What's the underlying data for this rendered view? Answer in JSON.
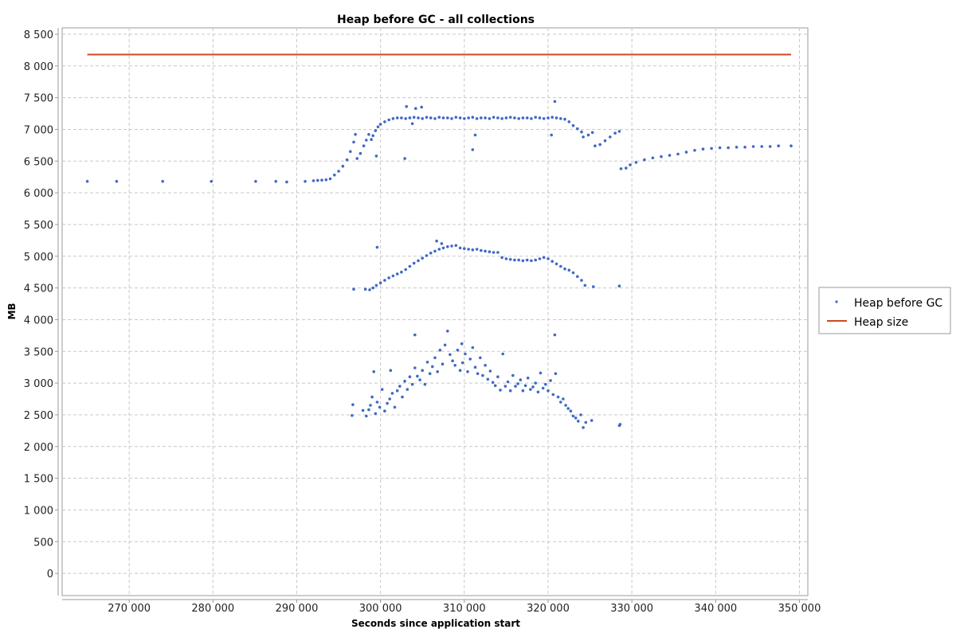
{
  "chart_data": {
    "type": "scatter",
    "title": "Heap before GC - all collections",
    "xlabel": "Seconds since application start",
    "ylabel": "MB",
    "xlim": [
      262000,
      351000
    ],
    "ylim": [
      -350,
      8600
    ],
    "x_ticks": [
      270000,
      280000,
      290000,
      300000,
      310000,
      320000,
      330000,
      340000,
      350000
    ],
    "x_tick_labels": [
      "270 000",
      "280 000",
      "290 000",
      "300 000",
      "310 000",
      "320 000",
      "330 000",
      "340 000",
      "350 000"
    ],
    "y_ticks": [
      0,
      500,
      1000,
      1500,
      2000,
      2500,
      3000,
      3500,
      4000,
      4500,
      5000,
      5500,
      6000,
      6500,
      7000,
      7500,
      8000,
      8500
    ],
    "y_tick_labels": [
      "0",
      "500",
      "1 000",
      "1 500",
      "2 000",
      "2 500",
      "3 000",
      "3 500",
      "4 000",
      "4 500",
      "5 000",
      "5 500",
      "6 000",
      "6 500",
      "7 000",
      "7 500",
      "8 000",
      "8 500"
    ],
    "grid": true,
    "legend_position": "right",
    "series": [
      {
        "name": "Heap before GC",
        "kind": "scatter",
        "color": "#4169c4",
        "points": [
          [
            265000,
            6180
          ],
          [
            268500,
            6180
          ],
          [
            274000,
            6180
          ],
          [
            279800,
            6180
          ],
          [
            285100,
            6180
          ],
          [
            287500,
            6180
          ],
          [
            288800,
            6170
          ],
          [
            291000,
            6180
          ],
          [
            292000,
            6190
          ],
          [
            292500,
            6195
          ],
          [
            293000,
            6200
          ],
          [
            293500,
            6205
          ],
          [
            294000,
            6220
          ],
          [
            294500,
            6280
          ],
          [
            295000,
            6340
          ],
          [
            295500,
            6420
          ],
          [
            296000,
            6520
          ],
          [
            296400,
            6650
          ],
          [
            296800,
            6800
          ],
          [
            297000,
            6920
          ],
          [
            297200,
            6540
          ],
          [
            297600,
            6620
          ],
          [
            298000,
            6740
          ],
          [
            298300,
            6830
          ],
          [
            298600,
            6920
          ],
          [
            298900,
            6840
          ],
          [
            299100,
            6900
          ],
          [
            299400,
            6980
          ],
          [
            299700,
            7040
          ],
          [
            300000,
            7080
          ],
          [
            300500,
            7120
          ],
          [
            301000,
            7150
          ],
          [
            301500,
            7170
          ],
          [
            302000,
            7180
          ],
          [
            302500,
            7180
          ],
          [
            303000,
            7170
          ],
          [
            303500,
            7180
          ],
          [
            304000,
            7190
          ],
          [
            304500,
            7180
          ],
          [
            305000,
            7170
          ],
          [
            305500,
            7190
          ],
          [
            306000,
            7180
          ],
          [
            306500,
            7170
          ],
          [
            307000,
            7190
          ],
          [
            307500,
            7180
          ],
          [
            308000,
            7180
          ],
          [
            308500,
            7170
          ],
          [
            309000,
            7190
          ],
          [
            309500,
            7180
          ],
          [
            310000,
            7170
          ],
          [
            310500,
            7180
          ],
          [
            311000,
            7190
          ],
          [
            311500,
            7170
          ],
          [
            312000,
            7180
          ],
          [
            312500,
            7180
          ],
          [
            313000,
            7170
          ],
          [
            313500,
            7190
          ],
          [
            314000,
            7180
          ],
          [
            314500,
            7170
          ],
          [
            315000,
            7180
          ],
          [
            315500,
            7190
          ],
          [
            316000,
            7180
          ],
          [
            316500,
            7170
          ],
          [
            317000,
            7180
          ],
          [
            317500,
            7180
          ],
          [
            318000,
            7170
          ],
          [
            318500,
            7190
          ],
          [
            319000,
            7180
          ],
          [
            319500,
            7170
          ],
          [
            320000,
            7180
          ],
          [
            320500,
            7190
          ],
          [
            321000,
            7180
          ],
          [
            321500,
            7170
          ],
          [
            322000,
            7160
          ],
          [
            322500,
            7120
          ],
          [
            323000,
            7060
          ],
          [
            323500,
            7010
          ],
          [
            324000,
            6960
          ],
          [
            324200,
            6880
          ],
          [
            324800,
            6910
          ],
          [
            325300,
            6950
          ],
          [
            325600,
            6740
          ],
          [
            326200,
            6760
          ],
          [
            326800,
            6820
          ],
          [
            327400,
            6880
          ],
          [
            328000,
            6940
          ],
          [
            328500,
            6970
          ],
          [
            328700,
            6380
          ],
          [
            329300,
            6390
          ],
          [
            329800,
            6440
          ],
          [
            330500,
            6480
          ],
          [
            331500,
            6520
          ],
          [
            332500,
            6550
          ],
          [
            333500,
            6570
          ],
          [
            334500,
            6590
          ],
          [
            335500,
            6610
          ],
          [
            336500,
            6640
          ],
          [
            337500,
            6670
          ],
          [
            338500,
            6690
          ],
          [
            339500,
            6700
          ],
          [
            340500,
            6710
          ],
          [
            341500,
            6710
          ],
          [
            342500,
            6720
          ],
          [
            343500,
            6720
          ],
          [
            344500,
            6730
          ],
          [
            345500,
            6730
          ],
          [
            346500,
            6730
          ],
          [
            347500,
            6740
          ],
          [
            349000,
            6740
          ],
          [
            299500,
            6580
          ],
          [
            302900,
            6540
          ],
          [
            303100,
            7360
          ],
          [
            304200,
            7330
          ],
          [
            304900,
            7350
          ],
          [
            311000,
            6680
          ],
          [
            311300,
            6910
          ],
          [
            320400,
            6910
          ],
          [
            320800,
            7440
          ],
          [
            303800,
            7090
          ],
          [
            296800,
            4480
          ],
          [
            298200,
            4480
          ],
          [
            298700,
            4470
          ],
          [
            299100,
            4500
          ],
          [
            299500,
            4540
          ],
          [
            300000,
            4580
          ],
          [
            300500,
            4620
          ],
          [
            301000,
            4660
          ],
          [
            301500,
            4690
          ],
          [
            302000,
            4720
          ],
          [
            302500,
            4750
          ],
          [
            303000,
            4790
          ],
          [
            303500,
            4840
          ],
          [
            304000,
            4890
          ],
          [
            304500,
            4930
          ],
          [
            305000,
            4970
          ],
          [
            305500,
            5010
          ],
          [
            306000,
            5050
          ],
          [
            306500,
            5080
          ],
          [
            307000,
            5110
          ],
          [
            307500,
            5130
          ],
          [
            308000,
            5150
          ],
          [
            308500,
            5160
          ],
          [
            309000,
            5170
          ],
          [
            309500,
            5130
          ],
          [
            310000,
            5120
          ],
          [
            310500,
            5110
          ],
          [
            311000,
            5100
          ],
          [
            311500,
            5110
          ],
          [
            312000,
            5090
          ],
          [
            312500,
            5080
          ],
          [
            313000,
            5070
          ],
          [
            313500,
            5060
          ],
          [
            314000,
            5060
          ],
          [
            314500,
            4980
          ],
          [
            315000,
            4960
          ],
          [
            315500,
            4950
          ],
          [
            316000,
            4940
          ],
          [
            316500,
            4940
          ],
          [
            317000,
            4930
          ],
          [
            317500,
            4940
          ],
          [
            318000,
            4930
          ],
          [
            318500,
            4940
          ],
          [
            319000,
            4960
          ],
          [
            319500,
            4980
          ],
          [
            320000,
            4960
          ],
          [
            320500,
            4920
          ],
          [
            321000,
            4880
          ],
          [
            321500,
            4840
          ],
          [
            322000,
            4800
          ],
          [
            322500,
            4780
          ],
          [
            323000,
            4740
          ],
          [
            323500,
            4680
          ],
          [
            324000,
            4620
          ],
          [
            324400,
            4540
          ],
          [
            325400,
            4520
          ],
          [
            328500,
            4530
          ],
          [
            299600,
            5140
          ],
          [
            306700,
            5240
          ],
          [
            307300,
            5200
          ],
          [
            296700,
            2660
          ],
          [
            296600,
            2490
          ],
          [
            297900,
            2570
          ],
          [
            298300,
            2480
          ],
          [
            298600,
            2580
          ],
          [
            298800,
            2650
          ],
          [
            299000,
            2780
          ],
          [
            299200,
            3180
          ],
          [
            299400,
            2520
          ],
          [
            299600,
            2700
          ],
          [
            299900,
            2620
          ],
          [
            300200,
            2900
          ],
          [
            300500,
            2560
          ],
          [
            300800,
            2680
          ],
          [
            301100,
            2750
          ],
          [
            301400,
            2840
          ],
          [
            301700,
            2620
          ],
          [
            302000,
            2880
          ],
          [
            302300,
            2950
          ],
          [
            302600,
            2780
          ],
          [
            302900,
            3030
          ],
          [
            303200,
            2900
          ],
          [
            303500,
            3100
          ],
          [
            303800,
            2980
          ],
          [
            304100,
            3240
          ],
          [
            304400,
            3110
          ],
          [
            304700,
            3050
          ],
          [
            305000,
            3200
          ],
          [
            305300,
            2980
          ],
          [
            305600,
            3330
          ],
          [
            305900,
            3150
          ],
          [
            306200,
            3260
          ],
          [
            306500,
            3400
          ],
          [
            306800,
            3180
          ],
          [
            307100,
            3520
          ],
          [
            307400,
            3300
          ],
          [
            307700,
            3600
          ],
          [
            308000,
            3820
          ],
          [
            308300,
            3450
          ],
          [
            308600,
            3350
          ],
          [
            308900,
            3280
          ],
          [
            309200,
            3520
          ],
          [
            309500,
            3200
          ],
          [
            309800,
            3320
          ],
          [
            310100,
            3460
          ],
          [
            310400,
            3180
          ],
          [
            310700,
            3380
          ],
          [
            311000,
            3560
          ],
          [
            311300,
            3250
          ],
          [
            311600,
            3150
          ],
          [
            311900,
            3400
          ],
          [
            312200,
            3120
          ],
          [
            312500,
            3280
          ],
          [
            312800,
            3060
          ],
          [
            313100,
            3190
          ],
          [
            313400,
            3010
          ],
          [
            313700,
            2960
          ],
          [
            314000,
            3100
          ],
          [
            314300,
            2890
          ],
          [
            314600,
            3460
          ],
          [
            314900,
            2950
          ],
          [
            315200,
            3020
          ],
          [
            315500,
            2880
          ],
          [
            315800,
            3120
          ],
          [
            316100,
            2950
          ],
          [
            316400,
            2990
          ],
          [
            316700,
            3050
          ],
          [
            317000,
            2880
          ],
          [
            317300,
            2960
          ],
          [
            317600,
            3080
          ],
          [
            317900,
            2900
          ],
          [
            318200,
            2940
          ],
          [
            318500,
            3000
          ],
          [
            318800,
            2860
          ],
          [
            319100,
            3160
          ],
          [
            319400,
            2920
          ],
          [
            319700,
            2980
          ],
          [
            320000,
            2880
          ],
          [
            320300,
            3040
          ],
          [
            320600,
            2820
          ],
          [
            320900,
            3150
          ],
          [
            321200,
            2780
          ],
          [
            321500,
            2700
          ],
          [
            321800,
            2750
          ],
          [
            322100,
            2650
          ],
          [
            322400,
            2600
          ],
          [
            322700,
            2560
          ],
          [
            323000,
            2480
          ],
          [
            323300,
            2450
          ],
          [
            323600,
            2400
          ],
          [
            323900,
            2500
          ],
          [
            324200,
            2300
          ],
          [
            324500,
            2380
          ],
          [
            325200,
            2410
          ],
          [
            328500,
            2330
          ],
          [
            328600,
            2350
          ],
          [
            304100,
            3760
          ],
          [
            320800,
            3760
          ],
          [
            301200,
            3200
          ],
          [
            309700,
            3620
          ]
        ]
      },
      {
        "name": "Heap size",
        "kind": "line",
        "color": "#cc4a1f",
        "points": [
          [
            265000,
            8180
          ],
          [
            349000,
            8180
          ]
        ]
      }
    ]
  }
}
